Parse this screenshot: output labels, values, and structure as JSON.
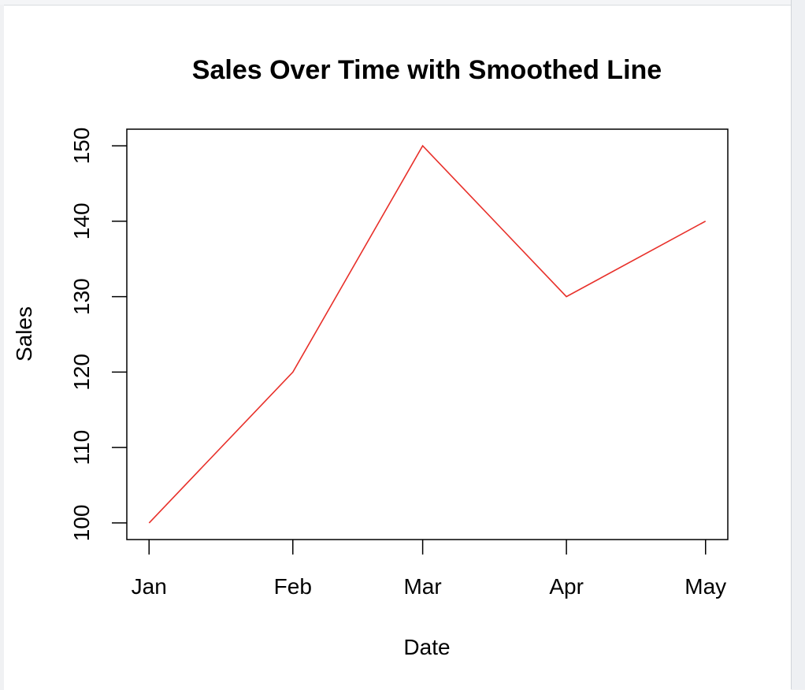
{
  "chart_data": {
    "type": "line",
    "title": "Sales Over Time with Smoothed Line",
    "xlabel": "Date",
    "ylabel": "Sales",
    "categories": [
      "Jan",
      "Feb",
      "Mar",
      "Apr",
      "May"
    ],
    "x_dates": [
      "2023-01-01",
      "2023-02-01",
      "2023-03-01",
      "2023-04-01",
      "2023-05-01"
    ],
    "series": [
      {
        "values": [
          100,
          120,
          150,
          130,
          140
        ],
        "color": "#e8302a"
      }
    ],
    "yticks": [
      "100",
      "110",
      "120",
      "130",
      "140",
      "150"
    ],
    "ylim": [
      97.8,
      152.2
    ],
    "grid": false,
    "legend": "none"
  }
}
